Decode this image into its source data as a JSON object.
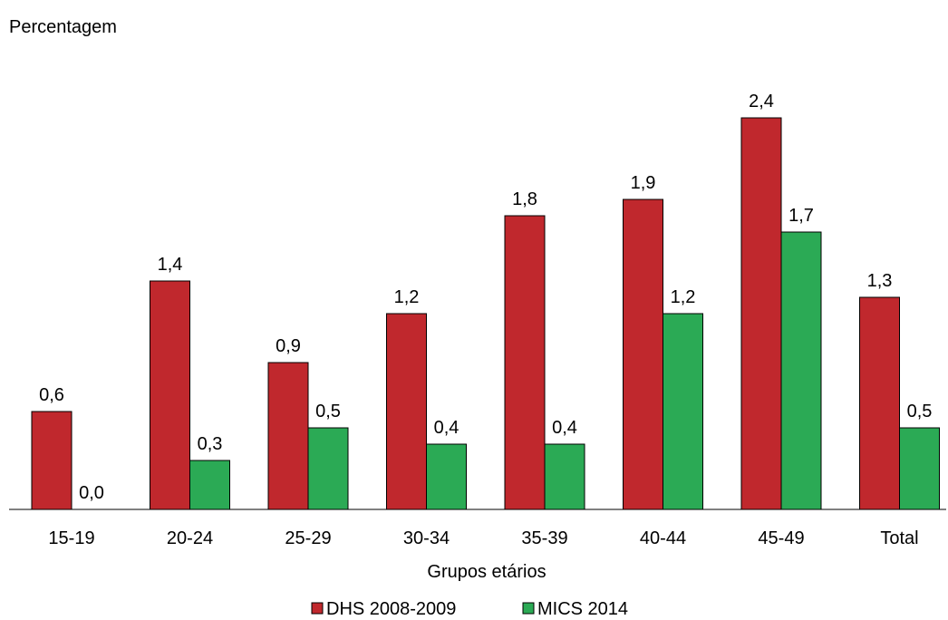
{
  "chart_data": {
    "type": "bar",
    "ylabel": "Percentagem",
    "xlabel": "Grupos etários",
    "categories": [
      "15-19",
      "20-24",
      "25-29",
      "30-34",
      "35-39",
      "40-44",
      "45-49",
      "Total"
    ],
    "series": [
      {
        "name": "DHS 2008-2009",
        "color": "#C0282D",
        "values": [
          0.6,
          1.4,
          0.9,
          1.2,
          1.8,
          1.9,
          2.4,
          1.3
        ],
        "labels": [
          "0,6",
          "1,4",
          "0,9",
          "1,2",
          "1,8",
          "1,9",
          "2,4",
          "1,3"
        ]
      },
      {
        "name": "MICS 2014",
        "color": "#2BAA55",
        "values": [
          0.0,
          0.3,
          0.5,
          0.4,
          0.4,
          1.2,
          1.7,
          0.5
        ],
        "labels": [
          "0,0",
          "0,3",
          "0,5",
          "0,4",
          "0,4",
          "1,2",
          "1,7",
          "0,5"
        ]
      }
    ],
    "ylim": [
      0,
      2.4
    ],
    "grid": false,
    "legend": "bottom"
  }
}
